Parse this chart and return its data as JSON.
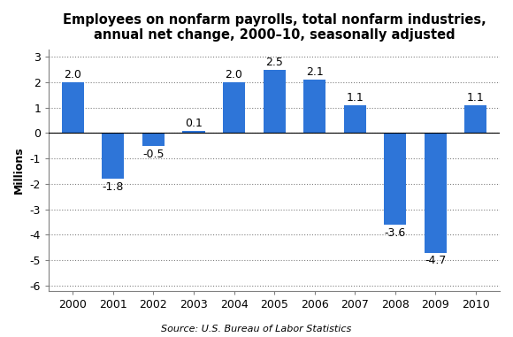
{
  "title": "Employees on nonfarm payrolls, total nonfarm industries,\nannual net change, 2000–10, seasonally adjusted",
  "years": [
    2000,
    2001,
    2002,
    2003,
    2004,
    2005,
    2006,
    2007,
    2008,
    2009,
    2010
  ],
  "values": [
    2.0,
    -1.8,
    -0.5,
    0.1,
    2.0,
    2.5,
    2.1,
    1.1,
    -3.6,
    -4.7,
    1.1
  ],
  "bar_color": "#2E75D8",
  "ylabel": "Millions",
  "ylim": [
    -6.2,
    3.3
  ],
  "yticks": [
    -6,
    -5,
    -4,
    -3,
    -2,
    -1,
    0,
    1,
    2,
    3
  ],
  "source": "Source: U.S. Bureau of Labor Statistics",
  "title_fontsize": 10.5,
  "label_fontsize": 9,
  "tick_fontsize": 9,
  "value_fontsize": 9,
  "source_fontsize": 8
}
